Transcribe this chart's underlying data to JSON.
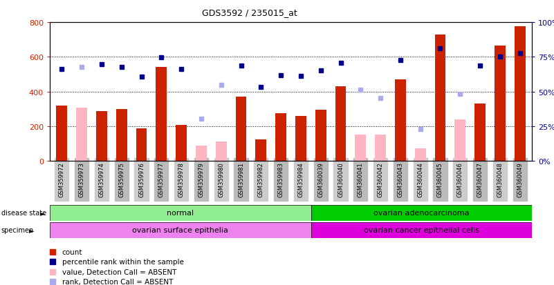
{
  "title": "GDS3592 / 235015_at",
  "samples": [
    "GSM359972",
    "GSM359973",
    "GSM359974",
    "GSM359975",
    "GSM359976",
    "GSM359977",
    "GSM359978",
    "GSM359979",
    "GSM359980",
    "GSM359981",
    "GSM359982",
    "GSM359983",
    "GSM359984",
    "GSM360039",
    "GSM360040",
    "GSM360041",
    "GSM360042",
    "GSM360043",
    "GSM360044",
    "GSM360045",
    "GSM360046",
    "GSM360047",
    "GSM360048",
    "GSM360049"
  ],
  "count": [
    320,
    null,
    285,
    300,
    185,
    540,
    207,
    null,
    null,
    370,
    125,
    275,
    260,
    293,
    430,
    null,
    null,
    470,
    null,
    730,
    null,
    330,
    665,
    775
  ],
  "count_absent": [
    null,
    307,
    null,
    null,
    null,
    null,
    null,
    88,
    110,
    null,
    null,
    null,
    null,
    null,
    null,
    152,
    152,
    null,
    70,
    null,
    240,
    null,
    null,
    null
  ],
  "rank": [
    530,
    null,
    558,
    543,
    485,
    597,
    530,
    null,
    null,
    550,
    425,
    495,
    490,
    520,
    565,
    null,
    null,
    580,
    null,
    648,
    null,
    548,
    600,
    620
  ],
  "rank_absent": [
    null,
    543,
    null,
    null,
    null,
    null,
    null,
    242,
    437,
    null,
    null,
    null,
    null,
    null,
    null,
    410,
    362,
    null,
    182,
    null,
    388,
    null,
    null,
    null
  ],
  "disease_state_split": 13,
  "disease_state_labels": [
    "normal",
    "ovarian adenocarcinoma"
  ],
  "specimen_labels": [
    "ovarian surface epithelia",
    "ovarian cancer epithelial cells"
  ],
  "normal_color": "#90ee90",
  "cancer_color": "#00cc00",
  "specimen_normal_color": "#ee82ee",
  "specimen_cancer_color": "#dd00dd",
  "bar_color_present": "#cc2200",
  "bar_color_absent": "#ffb6c1",
  "rank_color_present": "#00008b",
  "rank_color_absent": "#aaaaee",
  "ylim": [
    0,
    800
  ],
  "yticks": [
    0,
    200,
    400,
    600,
    800
  ],
  "ytick_labels_left": [
    "0",
    "200",
    "400",
    "600",
    "800"
  ],
  "ytick_labels_right": [
    "0%",
    "25%",
    "50%",
    "75%",
    "100%"
  ],
  "grid_lines": [
    200,
    400,
    600
  ],
  "legend_items": [
    {
      "label": "count",
      "color": "#cc2200"
    },
    {
      "label": "percentile rank within the sample",
      "color": "#00008b"
    },
    {
      "label": "value, Detection Call = ABSENT",
      "color": "#ffb6c1"
    },
    {
      "label": "rank, Detection Call = ABSENT",
      "color": "#aaaaee"
    }
  ]
}
